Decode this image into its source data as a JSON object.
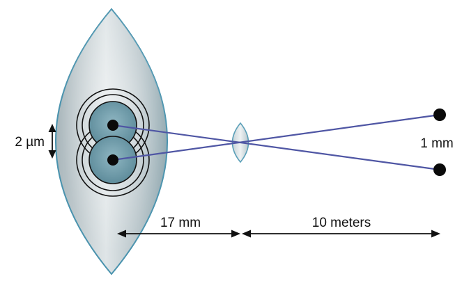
{
  "labels": {
    "receptor_spacing": "2 µm",
    "object_separation": "1 mm",
    "lens_to_retina": "17 mm",
    "object_distance": "10 meters"
  },
  "colors": {
    "ray": "#4f56a4",
    "eye_outline": "#4a93ae",
    "lens_outline": "#5a9fb8",
    "receptor_fill": "#6f9dac",
    "ring_stroke": "#111111",
    "dot": "#0a0a0a"
  }
}
